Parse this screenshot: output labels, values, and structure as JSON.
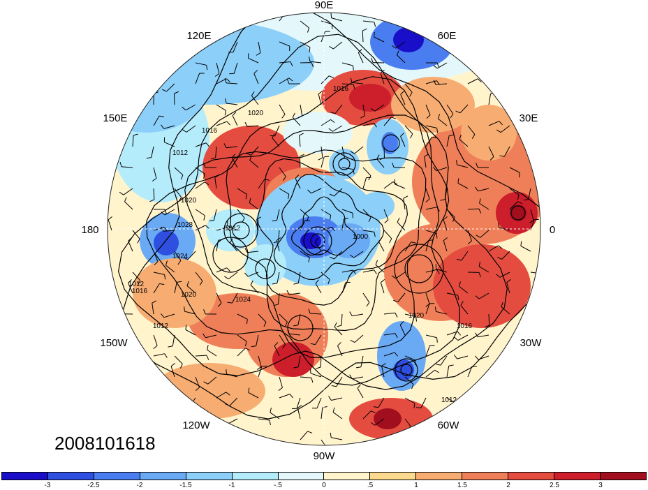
{
  "map": {
    "projection": "north-polar-stereographic",
    "longitude_labels": {
      "top": "90E",
      "upper_left": "120E",
      "upper_right": "60E",
      "left_upper": "150E",
      "right_upper": "30E",
      "left": "180",
      "right": "0",
      "left_lower": "150W",
      "right_lower": "30W",
      "lower_left": "120W",
      "lower_right": "60W",
      "bottom": "90W"
    },
    "contour_labels": [
      "1016",
      "1020",
      "1012",
      "1016",
      "1020",
      "1028",
      "1012",
      "1024",
      "1000",
      "1020",
      "1024",
      "1012",
      "1016",
      "1012",
      "1016",
      "1020",
      "1012"
    ],
    "shading": "anomaly field, blue negative / red positive",
    "overlays": [
      "sea-level pressure contours",
      "wind barbs",
      "coastlines"
    ]
  },
  "timestamp": "2008101618",
  "colorbar": {
    "colors": [
      "#1a0fc8",
      "#2e4fe0",
      "#4a7ef0",
      "#6aaaf5",
      "#8ccff9",
      "#b5ecfb",
      "#e4f8fb",
      "#fff4cc",
      "#fbd98e",
      "#f7ac72",
      "#ef7f58",
      "#e44c40",
      "#cc1f2b",
      "#a10f1f"
    ],
    "tick_labels": [
      "-3",
      "-2.5",
      "-2",
      "-1.5",
      "-1",
      "-.5",
      "0",
      ".5",
      "1",
      "1.5",
      "2",
      "2.5",
      "3"
    ]
  }
}
